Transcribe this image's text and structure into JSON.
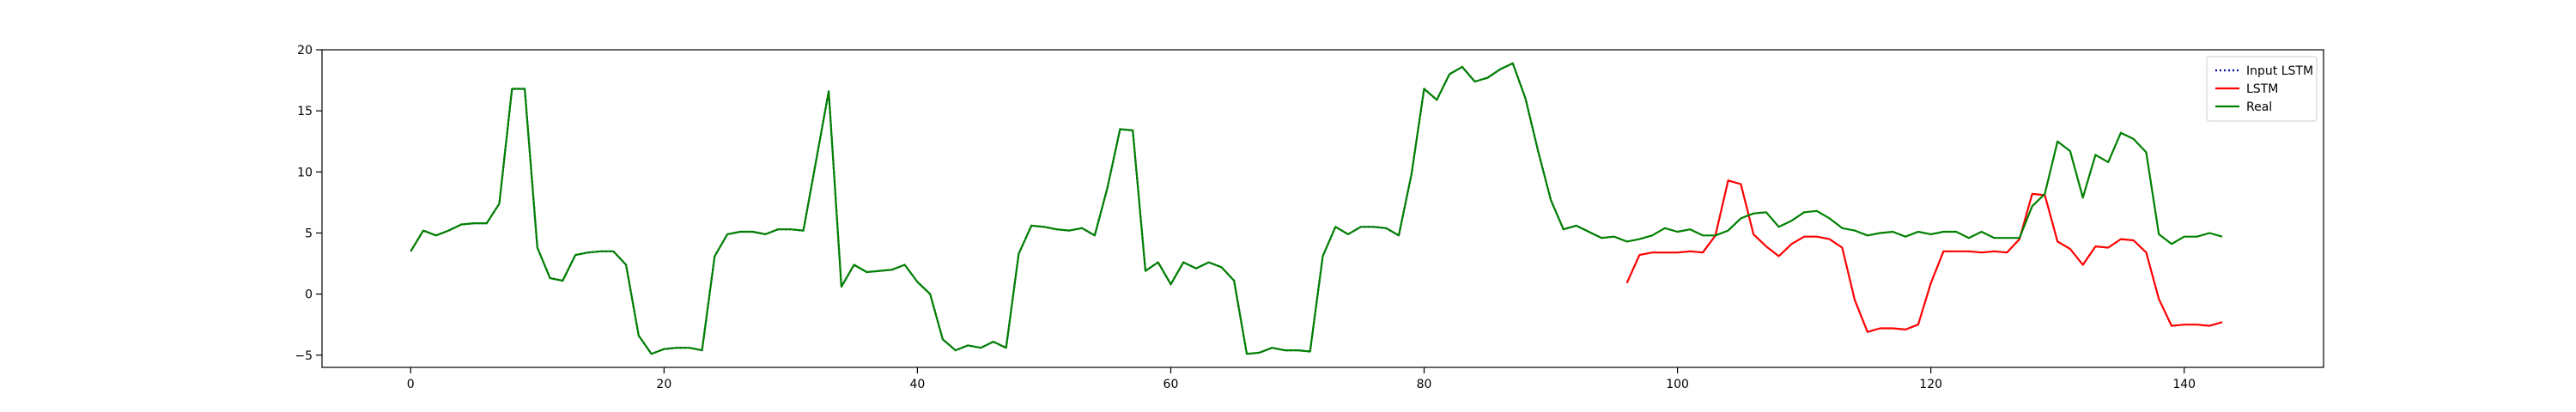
{
  "chart_data": {
    "type": "line",
    "title": "",
    "xlabel": "",
    "ylabel": "",
    "xlim": [
      -7,
      151
    ],
    "ylim": [
      -6,
      20
    ],
    "xticks": [
      0,
      20,
      40,
      60,
      80,
      100,
      120,
      140
    ],
    "yticks": [
      -5,
      0,
      5,
      10,
      15,
      20
    ],
    "grid": false,
    "legend_position": "upper right",
    "series": [
      {
        "name": "Input LSTM",
        "color": "#0000a0",
        "style": "dotted",
        "x": [
          0,
          1,
          2,
          3,
          4,
          5,
          6,
          7,
          8,
          9,
          10,
          11,
          12,
          13,
          14,
          15,
          16,
          17,
          18,
          19,
          20,
          21,
          22,
          23,
          24,
          25,
          26,
          27,
          28,
          29,
          30,
          31,
          32,
          33,
          34,
          35,
          36,
          37,
          38,
          39,
          40,
          41,
          42,
          43,
          44,
          45,
          46,
          47,
          48,
          49,
          50,
          51,
          52,
          53,
          54,
          55,
          56,
          57,
          58,
          59,
          60,
          61,
          62,
          63,
          64,
          65,
          66,
          67,
          68,
          69,
          70,
          71,
          72,
          73,
          74,
          75,
          76,
          77,
          78,
          79,
          80,
          81,
          82,
          83,
          84,
          85,
          86,
          87,
          88,
          89,
          90,
          91,
          92,
          93,
          94,
          95
        ],
        "y": [
          3.5,
          5.2,
          4.8,
          5.2,
          5.7,
          5.8,
          5.8,
          7.4,
          16.8,
          16.8,
          3.8,
          1.3,
          1.1,
          3.2,
          3.4,
          3.5,
          3.5,
          2.4,
          -3.4,
          -4.9,
          -4.5,
          -4.4,
          -4.4,
          -4.6,
          3.1,
          4.9,
          5.1,
          5.1,
          4.9,
          5.3,
          5.3,
          5.2,
          10.9,
          16.6,
          0.6,
          2.4,
          1.8,
          1.9,
          2.0,
          2.4,
          1.0,
          0.0,
          -3.7,
          -4.6,
          -4.2,
          -4.4,
          -3.9,
          -4.4,
          3.3,
          5.6,
          5.5,
          5.3,
          5.2,
          5.4,
          4.8,
          8.7,
          13.5,
          13.4,
          1.9,
          2.6,
          0.8,
          2.6,
          2.1,
          2.6,
          2.2,
          1.1,
          -4.9,
          -4.8,
          -4.4,
          -4.6,
          -4.6,
          -4.7,
          3.1,
          5.5,
          4.9,
          5.5,
          5.5,
          5.4,
          4.8,
          9.8,
          16.8,
          15.9,
          18.0,
          18.6,
          17.4,
          17.7,
          18.4,
          18.9,
          16.0,
          11.7,
          7.7,
          5.3,
          5.6,
          5.1,
          4.6,
          4.7
        ]
      },
      {
        "name": "LSTM",
        "color": "#ff0000",
        "style": "solid",
        "x": [
          96,
          97,
          98,
          99,
          100,
          101,
          102,
          103,
          104,
          105,
          106,
          107,
          108,
          109,
          110,
          111,
          112,
          113,
          114,
          115,
          116,
          117,
          118,
          119,
          120,
          121,
          122,
          123,
          124,
          125,
          126,
          127,
          128,
          129,
          130,
          131,
          132,
          133,
          134,
          135,
          136,
          137,
          138,
          139,
          140,
          141,
          142,
          143
        ],
        "y": [
          0.9,
          3.2,
          3.4,
          3.4,
          3.4,
          3.5,
          3.4,
          4.8,
          9.3,
          9.0,
          4.9,
          3.9,
          3.1,
          4.1,
          4.7,
          4.7,
          4.5,
          3.8,
          -0.5,
          -3.1,
          -2.8,
          -2.8,
          -2.9,
          -2.5,
          0.9,
          3.5,
          3.5,
          3.5,
          3.4,
          3.5,
          3.4,
          4.5,
          8.2,
          8.1,
          4.3,
          3.7,
          2.4,
          3.9,
          3.8,
          4.5,
          4.4,
          3.4,
          -0.4,
          -2.6,
          -2.5,
          -2.5,
          -2.6,
          -2.3
        ]
      },
      {
        "name": "Real",
        "color": "#008000",
        "style": "solid",
        "x": [
          0,
          1,
          2,
          3,
          4,
          5,
          6,
          7,
          8,
          9,
          10,
          11,
          12,
          13,
          14,
          15,
          16,
          17,
          18,
          19,
          20,
          21,
          22,
          23,
          24,
          25,
          26,
          27,
          28,
          29,
          30,
          31,
          32,
          33,
          34,
          35,
          36,
          37,
          38,
          39,
          40,
          41,
          42,
          43,
          44,
          45,
          46,
          47,
          48,
          49,
          50,
          51,
          52,
          53,
          54,
          55,
          56,
          57,
          58,
          59,
          60,
          61,
          62,
          63,
          64,
          65,
          66,
          67,
          68,
          69,
          70,
          71,
          72,
          73,
          74,
          75,
          76,
          77,
          78,
          79,
          80,
          81,
          82,
          83,
          84,
          85,
          86,
          87,
          88,
          89,
          90,
          91,
          92,
          93,
          94,
          95,
          96,
          97,
          98,
          99,
          100,
          101,
          102,
          103,
          104,
          105,
          106,
          107,
          108,
          109,
          110,
          111,
          112,
          113,
          114,
          115,
          116,
          117,
          118,
          119,
          120,
          121,
          122,
          123,
          124,
          125,
          126,
          127,
          128,
          129,
          130,
          131,
          132,
          133,
          134,
          135,
          136,
          137,
          138,
          139,
          140,
          141,
          142,
          143
        ],
        "y": [
          3.5,
          5.2,
          4.8,
          5.2,
          5.7,
          5.8,
          5.8,
          7.4,
          16.8,
          16.8,
          3.8,
          1.3,
          1.1,
          3.2,
          3.4,
          3.5,
          3.5,
          2.4,
          -3.4,
          -4.9,
          -4.5,
          -4.4,
          -4.4,
          -4.6,
          3.1,
          4.9,
          5.1,
          5.1,
          4.9,
          5.3,
          5.3,
          5.2,
          10.9,
          16.6,
          0.6,
          2.4,
          1.8,
          1.9,
          2.0,
          2.4,
          1.0,
          0.0,
          -3.7,
          -4.6,
          -4.2,
          -4.4,
          -3.9,
          -4.4,
          3.3,
          5.6,
          5.5,
          5.3,
          5.2,
          5.4,
          4.8,
          8.7,
          13.5,
          13.4,
          1.9,
          2.6,
          0.8,
          2.6,
          2.1,
          2.6,
          2.2,
          1.1,
          -4.9,
          -4.8,
          -4.4,
          -4.6,
          -4.6,
          -4.7,
          3.1,
          5.5,
          4.9,
          5.5,
          5.5,
          5.4,
          4.8,
          9.8,
          16.8,
          15.9,
          18.0,
          18.6,
          17.4,
          17.7,
          18.4,
          18.9,
          16.0,
          11.7,
          7.7,
          5.3,
          5.6,
          5.1,
          4.6,
          4.7,
          4.3,
          4.5,
          4.8,
          5.4,
          5.1,
          5.3,
          4.8,
          4.8,
          5.2,
          6.2,
          6.6,
          6.7,
          5.5,
          6.0,
          6.7,
          6.8,
          6.2,
          5.4,
          5.2,
          4.8,
          5.0,
          5.1,
          4.7,
          5.1,
          4.9,
          5.1,
          5.1,
          4.6,
          5.1,
          4.6,
          4.6,
          4.6,
          7.2,
          8.2,
          12.5,
          11.7,
          7.9,
          11.4,
          10.8,
          13.2,
          12.7,
          11.6,
          4.9,
          4.1,
          4.7,
          4.7,
          5.0,
          4.7
        ]
      }
    ]
  }
}
